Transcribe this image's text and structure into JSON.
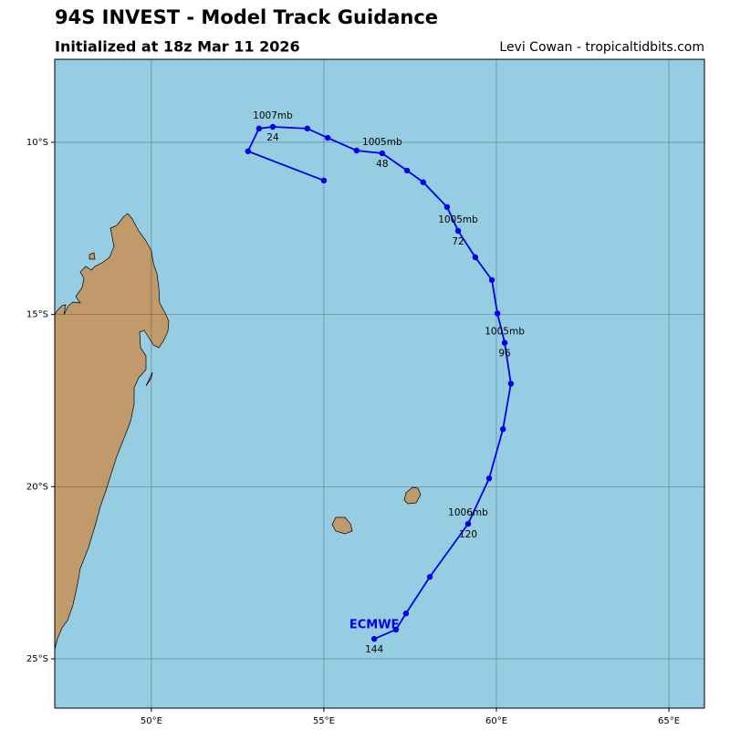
{
  "chart_data": {
    "type": "track",
    "title": "94S INVEST - Model Track Guidance",
    "subtitle": "Initialized at 18z Mar 11 2026",
    "credit": "Levi Cowan - tropicaltidbits.com",
    "xlim": [
      47.2,
      66.03
    ],
    "ylim": [
      -26.43,
      -7.59
    ],
    "xticks": [
      {
        "value": 50,
        "label": "50°E"
      },
      {
        "value": 55,
        "label": "55°E"
      },
      {
        "value": 60,
        "label": "60°E"
      },
      {
        "value": 65,
        "label": "65°E"
      }
    ],
    "yticks": [
      {
        "value": -10,
        "label": "10°S"
      },
      {
        "value": -15,
        "label": "15°S"
      },
      {
        "value": -20,
        "label": "20°S"
      },
      {
        "value": -25,
        "label": "25°S"
      }
    ],
    "grid": true,
    "series": [
      {
        "name": "ECMWF",
        "color": "#0000e6",
        "hours": [
          6,
          12,
          18,
          24,
          30,
          36,
          42,
          48,
          54,
          60,
          66,
          72,
          78,
          84,
          90,
          96,
          102,
          108,
          114,
          120,
          126,
          132,
          138,
          144
        ],
        "x": [
          55.0,
          52.8,
          53.12,
          53.52,
          54.52,
          55.11,
          55.95,
          56.69,
          57.41,
          57.88,
          58.57,
          58.89,
          59.39,
          59.87,
          60.03,
          60.24,
          60.42,
          60.19,
          59.79,
          59.18,
          58.07,
          57.38,
          57.09,
          56.46
        ],
        "values": [
          -11.11,
          -10.26,
          -9.6,
          -9.55,
          -9.6,
          -9.87,
          -10.24,
          -10.32,
          -10.82,
          -11.16,
          -11.88,
          -12.57,
          -13.34,
          -14.0,
          -14.97,
          -15.82,
          -17.01,
          -18.33,
          -19.76,
          -21.08,
          -22.62,
          -23.68,
          -24.15,
          -24.42
        ]
      }
    ],
    "annotations": [
      {
        "hour": 24,
        "pressure": "1007mb"
      },
      {
        "hour": 48,
        "pressure": "1005mb"
      },
      {
        "hour": 72,
        "pressure": "1005mb"
      },
      {
        "hour": 96,
        "pressure": "1005mb"
      },
      {
        "hour": 120,
        "pressure": "1006mb"
      },
      {
        "hour": 144
      }
    ]
  }
}
